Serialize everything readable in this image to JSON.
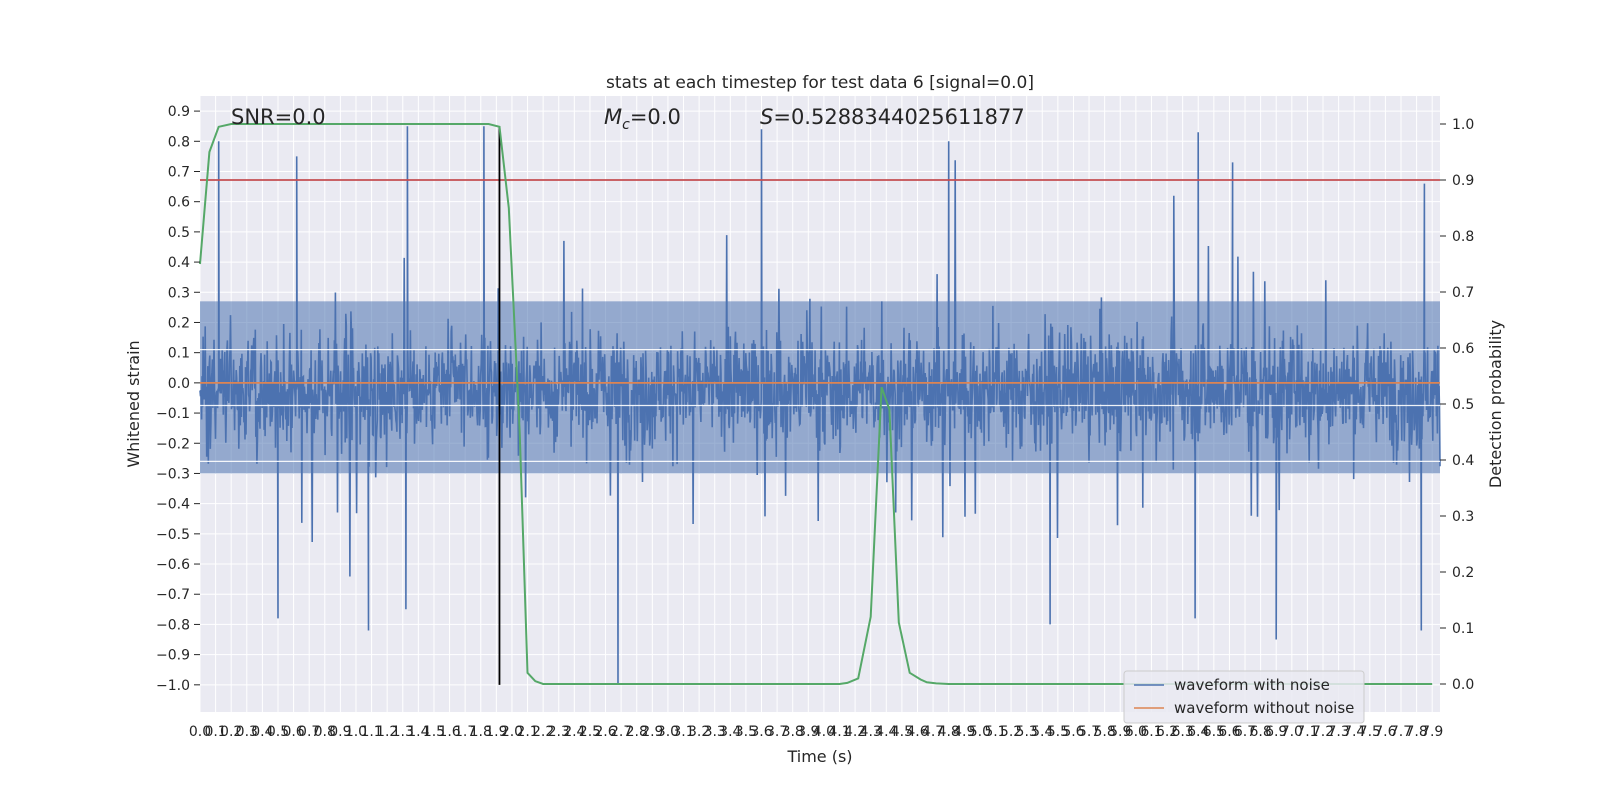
{
  "chart_data": {
    "type": "line",
    "title": "stats at each timestep for test data 6 [signal=0.0]",
    "xlabel": "Time (s)",
    "ylabel": "Whitened strain",
    "y2label": "Detection probability",
    "xlim": [
      0.0,
      7.95
    ],
    "ylim": [
      -1.09,
      0.95
    ],
    "y2lim": [
      -0.05,
      1.05
    ],
    "x_ticks": [
      "0.0",
      "0.1",
      "0.2",
      "0.3",
      "0.4",
      "0.5",
      "0.6",
      "0.7",
      "0.8",
      "0.9",
      "1.0",
      "1.1",
      "1.2",
      "1.3",
      "1.4",
      "1.5",
      "1.6",
      "1.7",
      "1.8",
      "1.9",
      "2.0",
      "2.1",
      "2.2",
      "2.3",
      "2.4",
      "2.5",
      "2.6",
      "2.7",
      "2.8",
      "2.9",
      "3.0",
      "3.1",
      "3.2",
      "3.3",
      "3.4",
      "3.5",
      "3.6",
      "3.7",
      "3.8",
      "3.9",
      "4.0",
      "4.1",
      "4.2",
      "4.3",
      "4.4",
      "4.5",
      "4.6",
      "4.7",
      "4.8",
      "4.9",
      "5.0",
      "5.1",
      "5.2",
      "5.3",
      "5.4",
      "5.5",
      "5.6",
      "5.7",
      "5.8",
      "5.9",
      "6.0",
      "6.1",
      "6.2",
      "6.3",
      "6.4",
      "6.5",
      "6.6",
      "6.7",
      "6.8",
      "6.9",
      "7.0",
      "7.1",
      "7.2",
      "7.3",
      "7.4",
      "7.5",
      "7.6",
      "7.7",
      "7.8",
      "7.9"
    ],
    "y_ticks": [
      "0.9",
      "0.8",
      "0.7",
      "0.6",
      "0.5",
      "0.4",
      "0.3",
      "0.2",
      "0.1",
      "0.0",
      "−0.1",
      "−0.2",
      "−0.3",
      "−0.4",
      "−0.5",
      "−0.6",
      "−0.7",
      "−0.8",
      "−0.9",
      "−1.0"
    ],
    "y_tick_values": [
      0.9,
      0.8,
      0.7,
      0.6,
      0.5,
      0.4,
      0.3,
      0.2,
      0.1,
      0.0,
      -0.1,
      -0.2,
      -0.3,
      -0.4,
      -0.5,
      -0.6,
      -0.7,
      -0.8,
      -0.9,
      -1.0
    ],
    "y2_ticks": [
      "1.0",
      "0.9",
      "0.8",
      "0.7",
      "0.6",
      "0.5",
      "0.4",
      "0.3",
      "0.2",
      "0.1",
      "0.0"
    ],
    "y2_tick_values": [
      1.0,
      0.9,
      0.8,
      0.7,
      0.6,
      0.5,
      0.4,
      0.3,
      0.2,
      0.1,
      0.0
    ],
    "annotations": {
      "snr": "SNR=0.0",
      "mc_symbol": "M",
      "mc_sub": "c",
      "mc_value": "=0.0",
      "s_symbol": "S",
      "s_value": "=0.5288344025611877"
    },
    "threshold": {
      "axis": "right",
      "value": 0.9,
      "color": "#c44e52"
    },
    "vertical_marker": {
      "x": 1.92,
      "y_from": -1.0,
      "y_to": 0.85,
      "color": "#000000"
    },
    "series": [
      {
        "name": "waveform with noise",
        "color": "#4c72b0",
        "axis": "left",
        "note": "dense whitened noise, ~8000 samples",
        "samples": 8000,
        "typical_range": [
          -0.35,
          0.3
        ],
        "peaks": [
          {
            "x": 0.12,
            "y": 0.8
          },
          {
            "x": 0.62,
            "y": 0.75
          },
          {
            "x": 1.33,
            "y": 0.85
          },
          {
            "x": 1.82,
            "y": 0.85
          },
          {
            "x": 3.6,
            "y": 0.84
          },
          {
            "x": 4.8,
            "y": 0.8
          },
          {
            "x": 6.4,
            "y": 0.83
          },
          {
            "x": 6.62,
            "y": 0.73
          },
          {
            "x": 7.85,
            "y": 0.66
          }
        ],
        "troughs": [
          {
            "x": 0.5,
            "y": -0.78
          },
          {
            "x": 1.08,
            "y": -0.82
          },
          {
            "x": 1.32,
            "y": -0.75
          },
          {
            "x": 2.68,
            "y": -1.0
          },
          {
            "x": 5.45,
            "y": -0.8
          },
          {
            "x": 6.38,
            "y": -0.78
          },
          {
            "x": 6.9,
            "y": -0.85
          },
          {
            "x": 7.83,
            "y": -0.82
          }
        ]
      },
      {
        "name": "waveform without noise",
        "color": "#dd8452",
        "axis": "left",
        "x": [
          0.0,
          7.95
        ],
        "y": [
          0.0,
          0.0
        ]
      },
      {
        "name": "detection probability",
        "color": "#55a868",
        "axis": "right",
        "x": [
          0.0,
          0.06,
          0.12,
          0.2,
          0.4,
          1.0,
          1.5,
          1.85,
          1.92,
          1.98,
          2.05,
          2.1,
          2.15,
          2.2,
          2.5,
          3.5,
          4.1,
          4.15,
          4.22,
          4.3,
          4.37,
          4.42,
          4.48,
          4.55,
          4.62,
          4.66,
          4.72,
          4.8,
          5.0,
          7.9
        ],
        "y": [
          0.75,
          0.95,
          0.995,
          1.0,
          1.0,
          1.0,
          1.0,
          1.0,
          0.995,
          0.85,
          0.45,
          0.02,
          0.005,
          0.0,
          0.0,
          0.0,
          0.0,
          0.002,
          0.01,
          0.12,
          0.53,
          0.49,
          0.11,
          0.02,
          0.008,
          0.003,
          0.001,
          0.0,
          0.0,
          0.0
        ]
      }
    ],
    "legend": {
      "placement": "lower-right",
      "entries": [
        {
          "label": "waveform with noise",
          "color": "#4c72b0"
        },
        {
          "label": "waveform without noise",
          "color": "#dd8452"
        }
      ]
    },
    "style": {
      "background": "#eaeaf2",
      "grid": "#ffffff",
      "grid_on": true
    }
  }
}
